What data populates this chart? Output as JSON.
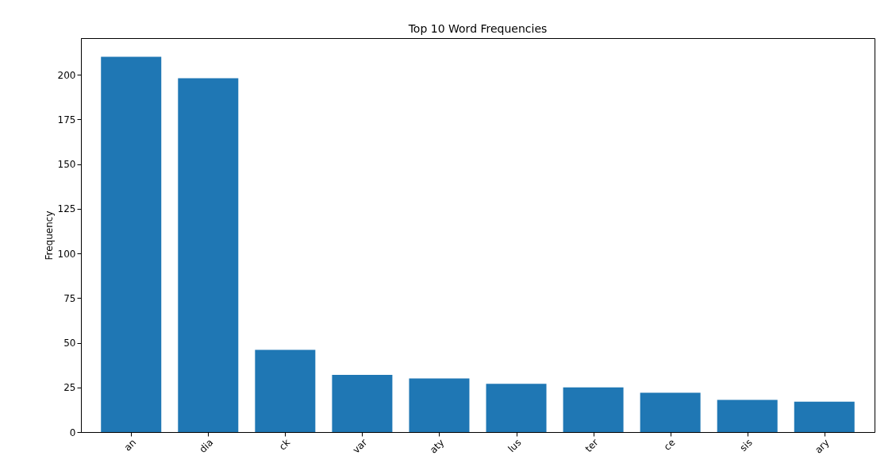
{
  "chart_data": {
    "type": "bar",
    "title": "Top 10 Word Frequencies",
    "ylabel": "Frequency",
    "categories": [
      "an",
      "dia",
      "ck",
      "var",
      "aty",
      "lus",
      "ter",
      "ce",
      "sis",
      "ary"
    ],
    "values": [
      210,
      198,
      46,
      32,
      30,
      27,
      25,
      22,
      18,
      17
    ],
    "color": "#1f77b4",
    "ylim": [
      0,
      220.5
    ],
    "yticks": [
      0,
      25,
      50,
      75,
      100,
      125,
      150,
      175,
      200
    ],
    "grid": false
  }
}
